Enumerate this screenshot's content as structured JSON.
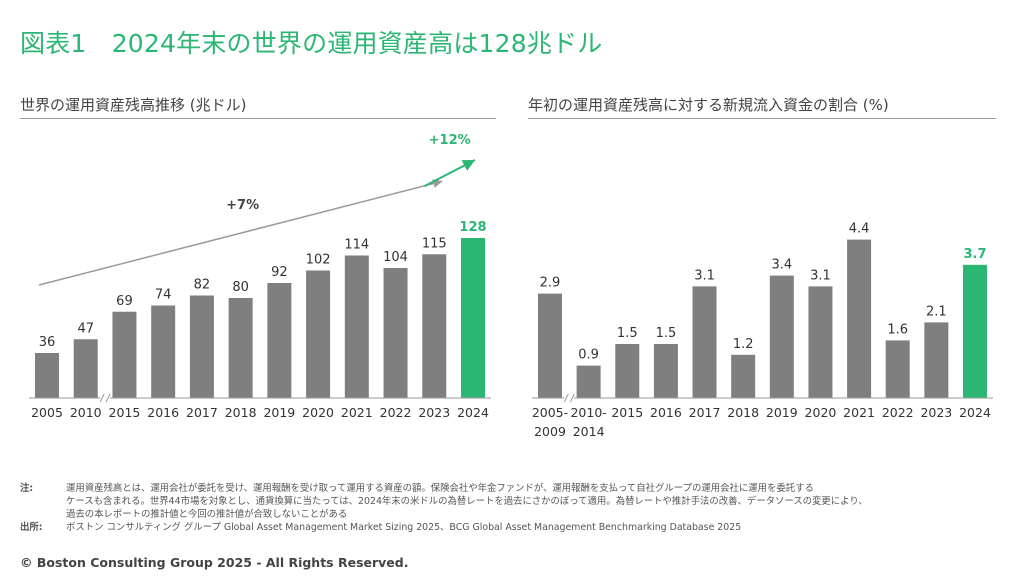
{
  "title": "図表1　2024年末の世界の運用資産高は128兆ドル",
  "colors": {
    "accent": "#2bb673",
    "bar": "#7f7f7f",
    "axis": "#9a9a9a",
    "trend": "#9a9a9a"
  },
  "left_chart": {
    "heading": "世界の運用資産残高推移 (兆ドル)",
    "trend_label": "+7%",
    "growth_label": "+12%"
  },
  "right_chart": {
    "heading": "年初の運用資産残高に対する新規流入資金の割合 (%)"
  },
  "chart_data": [
    {
      "type": "bar",
      "title": "世界の運用資産残高推移 (兆ドル)",
      "categories": [
        "2005",
        "2010",
        "2015",
        "2016",
        "2017",
        "2018",
        "2019",
        "2020",
        "2021",
        "2022",
        "2023",
        "2024"
      ],
      "values": [
        36,
        47,
        69,
        74,
        82,
        80,
        92,
        102,
        114,
        104,
        115,
        128
      ],
      "value_labels": [
        "36",
        "47",
        "69",
        "74",
        "82",
        "80",
        "92",
        "102",
        "114",
        "104",
        "115",
        "128"
      ],
      "highlight_index": 11,
      "axis_break_after_index": 1,
      "ylim": [
        0,
        150
      ],
      "annotations": [
        "+7%",
        "+12%"
      ],
      "grid": false
    },
    {
      "type": "bar",
      "title": "年初の運用資産残高に対する新規流入資金の割合 (%)",
      "categories": [
        "2005-2009",
        "2010-2014",
        "2015",
        "2016",
        "2017",
        "2018",
        "2019",
        "2020",
        "2021",
        "2022",
        "2023",
        "2024"
      ],
      "category_lines": [
        [
          "2005-",
          "2009"
        ],
        [
          "2010-",
          "2014"
        ],
        [
          "2015"
        ],
        [
          "2016"
        ],
        [
          "2017"
        ],
        [
          "2018"
        ],
        [
          "2019"
        ],
        [
          "2020"
        ],
        [
          "2021"
        ],
        [
          "2022"
        ],
        [
          "2023"
        ],
        [
          "2024"
        ]
      ],
      "values": [
        2.9,
        0.9,
        1.5,
        1.5,
        3.1,
        1.2,
        3.4,
        3.1,
        4.4,
        1.6,
        2.1,
        3.7
      ],
      "value_labels": [
        "2.9",
        "0.9",
        "1.5",
        "1.5",
        "3.1",
        "1.2",
        "3.4",
        "3.1",
        "4.4",
        "1.6",
        "2.1",
        "3.7"
      ],
      "highlight_index": 11,
      "axis_break_after_index": 0,
      "ylim": [
        0,
        6.5
      ],
      "grid": false
    }
  ],
  "notes": {
    "note_label": "注:",
    "note_lines": [
      "運用資産残高とは、運用会社が委託を受け、運用報酬を受け取って運用する資産の額。保険会社や年金ファンドが、運用報酬を支払って自社グループの運用会社に運用を委託する",
      "ケースも含まれる。世界44市場を対象とし、通貨換算に当たっては、2024年末の米ドルの為替レートを過去にさかのぼって適用。為替レートや推計手法の改善、データソースの変更により、",
      "過去の本レポートの推計値と今回の推計値が合致しないことがある"
    ],
    "source_label": "出所:",
    "source_text": "ボストン コンサルティング グループ Global Asset Management Market Sizing 2025、BCG Global Asset Management Benchmarking Database 2025"
  },
  "footer": "© Boston Consulting Group 2025 - All Rights Reserved."
}
